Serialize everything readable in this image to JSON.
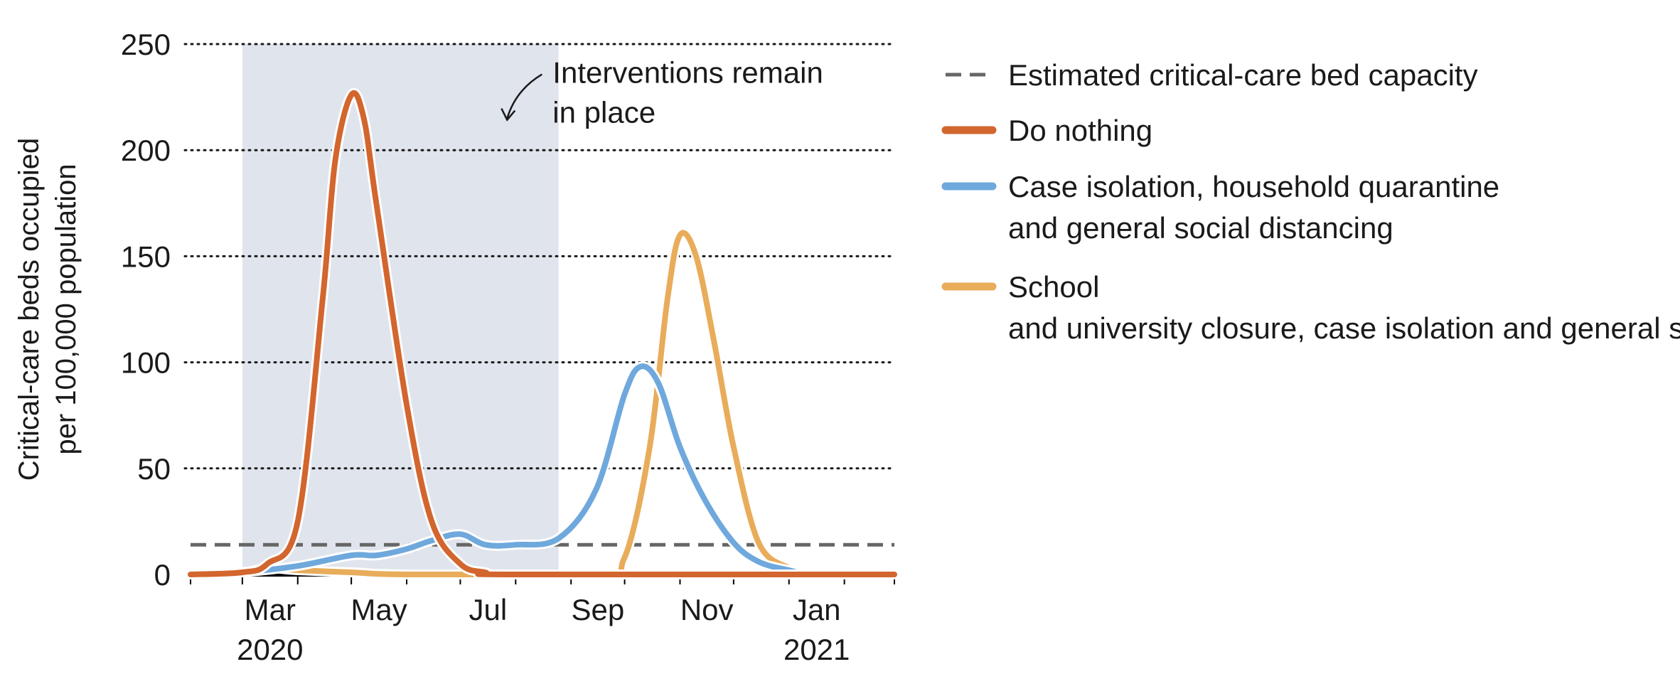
{
  "chart_data": {
    "type": "line",
    "title": "",
    "ylabel": [
      "Critical-care beds occupied",
      "per 100,000 population"
    ],
    "xlabel": "",
    "ylim": [
      0,
      250
    ],
    "yticks": [
      0,
      50,
      100,
      150,
      200,
      250
    ],
    "grid": "horizontal dotted",
    "x_range_months": [
      "2020-02",
      "2021-03"
    ],
    "x_ticks": [
      {
        "date": "2020-03",
        "label": "Mar",
        "year": "2020"
      },
      {
        "date": "2020-05",
        "label": "May",
        "year": ""
      },
      {
        "date": "2020-07",
        "label": "Jul",
        "year": ""
      },
      {
        "date": "2020-09",
        "label": "Sep",
        "year": ""
      },
      {
        "date": "2020-11",
        "label": "Nov",
        "year": ""
      },
      {
        "date": "2021-01",
        "label": "Jan",
        "year": "2021"
      }
    ],
    "shaded_region": {
      "start": "2020-03",
      "end": "2020-08-25",
      "color": "#e0e4ec"
    },
    "annotation": {
      "lines": [
        "Interventions remain",
        "in place"
      ],
      "date": "2020-08-01",
      "y": 225
    },
    "capacity_line": {
      "name": "Estimated critical-care bed capacity",
      "value": 14,
      "color": "#666666"
    },
    "legend_position": "right",
    "series": [
      {
        "name": "Do nothing",
        "color": "#d2662e",
        "points": [
          [
            "2020-02-01",
            0
          ],
          [
            "2020-03-01",
            1
          ],
          [
            "2020-03-15",
            5
          ],
          [
            "2020-04-01",
            25
          ],
          [
            "2020-04-15",
            130
          ],
          [
            "2020-04-22",
            195
          ],
          [
            "2020-05-01",
            226
          ],
          [
            "2020-05-08",
            215
          ],
          [
            "2020-05-15",
            175
          ],
          [
            "2020-06-01",
            80
          ],
          [
            "2020-06-15",
            25
          ],
          [
            "2020-07-01",
            5
          ],
          [
            "2020-07-15",
            1
          ],
          [
            "2020-08-01",
            0
          ],
          [
            "2021-03-01",
            0
          ]
        ]
      },
      {
        "name": "Case isolation, household quarantine and general social distancing",
        "color": "#6fa8dc",
        "points": [
          [
            "2020-02-01",
            0
          ],
          [
            "2020-03-01",
            1
          ],
          [
            "2020-04-01",
            4
          ],
          [
            "2020-05-01",
            9
          ],
          [
            "2020-05-15",
            9
          ],
          [
            "2020-06-01",
            12
          ],
          [
            "2020-06-15",
            16
          ],
          [
            "2020-07-01",
            19
          ],
          [
            "2020-07-15",
            14
          ],
          [
            "2020-08-01",
            14
          ],
          [
            "2020-08-25",
            17
          ],
          [
            "2020-09-15",
            40
          ],
          [
            "2020-10-01",
            85
          ],
          [
            "2020-10-10",
            98
          ],
          [
            "2020-10-20",
            90
          ],
          [
            "2020-11-01",
            60
          ],
          [
            "2020-11-15",
            35
          ],
          [
            "2020-12-01",
            15
          ],
          [
            "2020-12-15",
            6
          ],
          [
            "2021-01-01",
            2
          ],
          [
            "2021-01-15",
            0
          ],
          [
            "2021-03-01",
            0
          ]
        ]
      },
      {
        "name": "School and university closure, case isolation and general social distancing",
        "color": "#e8ac5a",
        "points": [
          [
            "2020-02-01",
            0
          ],
          [
            "2020-03-01",
            1
          ],
          [
            "2020-03-15",
            3
          ],
          [
            "2020-04-01",
            2
          ],
          [
            "2020-05-01",
            1
          ],
          [
            "2020-06-01",
            0
          ],
          [
            "2020-09-15",
            0
          ],
          [
            "2020-10-01",
            8
          ],
          [
            "2020-10-15",
            60
          ],
          [
            "2020-10-25",
            130
          ],
          [
            "2020-11-01",
            160
          ],
          [
            "2020-11-10",
            150
          ],
          [
            "2020-11-20",
            110
          ],
          [
            "2020-12-01",
            60
          ],
          [
            "2020-12-15",
            15
          ],
          [
            "2021-01-01",
            3
          ],
          [
            "2021-01-15",
            0
          ],
          [
            "2021-03-01",
            0
          ]
        ]
      }
    ]
  }
}
